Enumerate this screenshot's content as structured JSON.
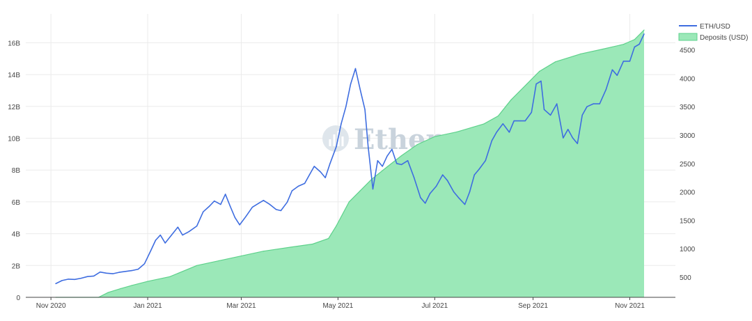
{
  "chart_data": {
    "type": "area",
    "watermark": "Etherscan",
    "x_range": [
      "2020-10-25",
      "2021-11-30"
    ],
    "x_ticks": [
      {
        "date": "2020-11-01",
        "label": "Nov 2020"
      },
      {
        "date": "2021-01-01",
        "label": "Jan 2021"
      },
      {
        "date": "2021-03-01",
        "label": "Mar 2021"
      },
      {
        "date": "2021-05-01",
        "label": "May 2021"
      },
      {
        "date": "2021-07-01",
        "label": "Jul 2021"
      },
      {
        "date": "2021-09-01",
        "label": "Sep 2021"
      },
      {
        "date": "2021-11-01",
        "label": "Nov 2021"
      }
    ],
    "y_left": {
      "range": [
        0,
        17000000000
      ],
      "ticks": [
        {
          "value": 0,
          "label": "0"
        },
        {
          "value": 2000000000,
          "label": "2B"
        },
        {
          "value": 4000000000,
          "label": "4B"
        },
        {
          "value": 6000000000,
          "label": "6B"
        },
        {
          "value": 8000000000,
          "label": "8B"
        },
        {
          "value": 10000000000,
          "label": "10B"
        },
        {
          "value": 12000000000,
          "label": "12B"
        },
        {
          "value": 14000000000,
          "label": "14B"
        },
        {
          "value": 16000000000,
          "label": "16B"
        }
      ]
    },
    "y_right": {
      "range": [
        200,
        4900
      ],
      "ticks": [
        {
          "value": 500,
          "label": "500"
        },
        {
          "value": 1000,
          "label": "1000"
        },
        {
          "value": 1500,
          "label": "1500"
        },
        {
          "value": 2000,
          "label": "2000"
        },
        {
          "value": 2500,
          "label": "2500"
        },
        {
          "value": 3000,
          "label": "3000"
        },
        {
          "value": 3500,
          "label": "3500"
        },
        {
          "value": 4000,
          "label": "4000"
        },
        {
          "value": 4500,
          "label": "4500"
        }
      ]
    },
    "grid": true,
    "legend_position": "top-right",
    "series": [
      {
        "name": "ETH/USD",
        "type": "line",
        "axis": "right",
        "color": "#3e6de0",
        "points": [
          [
            "2020-11-04",
            385
          ],
          [
            "2020-11-08",
            440
          ],
          [
            "2020-11-12",
            465
          ],
          [
            "2020-11-16",
            460
          ],
          [
            "2020-11-20",
            480
          ],
          [
            "2020-11-24",
            510
          ],
          [
            "2020-11-28",
            520
          ],
          [
            "2020-12-02",
            590
          ],
          [
            "2020-12-06",
            570
          ],
          [
            "2020-12-10",
            560
          ],
          [
            "2020-12-14",
            585
          ],
          [
            "2020-12-18",
            600
          ],
          [
            "2020-12-22",
            615
          ],
          [
            "2020-12-26",
            640
          ],
          [
            "2020-12-30",
            735
          ],
          [
            "2021-01-03",
            970
          ],
          [
            "2021-01-06",
            1150
          ],
          [
            "2021-01-09",
            1240
          ],
          [
            "2021-01-12",
            1100
          ],
          [
            "2021-01-16",
            1240
          ],
          [
            "2021-01-20",
            1380
          ],
          [
            "2021-01-23",
            1240
          ],
          [
            "2021-01-27",
            1300
          ],
          [
            "2021-02-01",
            1400
          ],
          [
            "2021-02-05",
            1650
          ],
          [
            "2021-02-09",
            1750
          ],
          [
            "2021-02-12",
            1840
          ],
          [
            "2021-02-16",
            1780
          ],
          [
            "2021-02-19",
            1960
          ],
          [
            "2021-02-22",
            1750
          ],
          [
            "2021-02-25",
            1550
          ],
          [
            "2021-02-28",
            1420
          ],
          [
            "2021-03-04",
            1570
          ],
          [
            "2021-03-08",
            1730
          ],
          [
            "2021-03-12",
            1800
          ],
          [
            "2021-03-15",
            1850
          ],
          [
            "2021-03-19",
            1780
          ],
          [
            "2021-03-23",
            1690
          ],
          [
            "2021-03-26",
            1670
          ],
          [
            "2021-03-30",
            1820
          ],
          [
            "2021-04-02",
            2020
          ],
          [
            "2021-04-06",
            2100
          ],
          [
            "2021-04-10",
            2150
          ],
          [
            "2021-04-13",
            2300
          ],
          [
            "2021-04-16",
            2450
          ],
          [
            "2021-04-20",
            2350
          ],
          [
            "2021-04-23",
            2250
          ],
          [
            "2021-04-26",
            2500
          ],
          [
            "2021-04-30",
            2800
          ],
          [
            "2021-05-03",
            3200
          ],
          [
            "2021-05-06",
            3500
          ],
          [
            "2021-05-09",
            3900
          ],
          [
            "2021-05-12",
            4170
          ],
          [
            "2021-05-15",
            3800
          ],
          [
            "2021-05-18",
            3450
          ],
          [
            "2021-05-20",
            2800
          ],
          [
            "2021-05-23",
            2050
          ],
          [
            "2021-05-26",
            2550
          ],
          [
            "2021-05-29",
            2450
          ],
          [
            "2021-06-01",
            2630
          ],
          [
            "2021-06-04",
            2750
          ],
          [
            "2021-06-07",
            2500
          ],
          [
            "2021-06-10",
            2480
          ],
          [
            "2021-06-14",
            2550
          ],
          [
            "2021-06-18",
            2250
          ],
          [
            "2021-06-22",
            1900
          ],
          [
            "2021-06-25",
            1800
          ],
          [
            "2021-06-28",
            1970
          ],
          [
            "2021-07-02",
            2100
          ],
          [
            "2021-07-06",
            2300
          ],
          [
            "2021-07-09",
            2200
          ],
          [
            "2021-07-13",
            2000
          ],
          [
            "2021-07-16",
            1900
          ],
          [
            "2021-07-20",
            1780
          ],
          [
            "2021-07-23",
            2000
          ],
          [
            "2021-07-26",
            2300
          ],
          [
            "2021-07-29",
            2400
          ],
          [
            "2021-08-02",
            2550
          ],
          [
            "2021-08-06",
            2900
          ],
          [
            "2021-08-09",
            3050
          ],
          [
            "2021-08-13",
            3200
          ],
          [
            "2021-08-17",
            3050
          ],
          [
            "2021-08-20",
            3250
          ],
          [
            "2021-08-24",
            3250
          ],
          [
            "2021-08-27",
            3250
          ],
          [
            "2021-08-31",
            3400
          ],
          [
            "2021-09-03",
            3900
          ],
          [
            "2021-09-06",
            3950
          ],
          [
            "2021-09-08",
            3450
          ],
          [
            "2021-09-12",
            3350
          ],
          [
            "2021-09-16",
            3550
          ],
          [
            "2021-09-20",
            2950
          ],
          [
            "2021-09-23",
            3100
          ],
          [
            "2021-09-26",
            2950
          ],
          [
            "2021-09-29",
            2850
          ],
          [
            "2021-10-02",
            3350
          ],
          [
            "2021-10-05",
            3500
          ],
          [
            "2021-10-09",
            3550
          ],
          [
            "2021-10-13",
            3550
          ],
          [
            "2021-10-17",
            3800
          ],
          [
            "2021-10-21",
            4150
          ],
          [
            "2021-10-24",
            4050
          ],
          [
            "2021-10-28",
            4300
          ],
          [
            "2021-11-01",
            4300
          ],
          [
            "2021-11-04",
            4550
          ],
          [
            "2021-11-07",
            4600
          ],
          [
            "2021-11-10",
            4780
          ]
        ]
      },
      {
        "name": "Deposits (USD)",
        "type": "area",
        "axis": "left",
        "color": "#9be8b8",
        "line_color": "#5ed18b",
        "points": [
          [
            "2020-11-04",
            0
          ],
          [
            "2020-12-01",
            0
          ],
          [
            "2020-12-07",
            300000000
          ],
          [
            "2020-12-15",
            550000000
          ],
          [
            "2020-12-22",
            750000000
          ],
          [
            "2021-01-01",
            1000000000
          ],
          [
            "2021-01-15",
            1300000000
          ],
          [
            "2021-02-01",
            2000000000
          ],
          [
            "2021-02-15",
            2300000000
          ],
          [
            "2021-03-01",
            2600000000
          ],
          [
            "2021-03-15",
            2900000000
          ],
          [
            "2021-04-01",
            3150000000
          ],
          [
            "2021-04-15",
            3350000000
          ],
          [
            "2021-04-25",
            3700000000
          ],
          [
            "2021-04-30",
            4500000000
          ],
          [
            "2021-05-08",
            6000000000
          ],
          [
            "2021-05-15",
            6700000000
          ],
          [
            "2021-05-22",
            7400000000
          ],
          [
            "2021-06-01",
            8200000000
          ],
          [
            "2021-06-10",
            8900000000
          ],
          [
            "2021-06-20",
            9600000000
          ],
          [
            "2021-07-01",
            10100000000
          ],
          [
            "2021-07-15",
            10400000000
          ],
          [
            "2021-08-01",
            10900000000
          ],
          [
            "2021-08-10",
            11400000000
          ],
          [
            "2021-08-18",
            12400000000
          ],
          [
            "2021-08-28",
            13400000000
          ],
          [
            "2021-09-05",
            14200000000
          ],
          [
            "2021-09-15",
            14800000000
          ],
          [
            "2021-10-01",
            15300000000
          ],
          [
            "2021-10-15",
            15600000000
          ],
          [
            "2021-10-28",
            15900000000
          ],
          [
            "2021-11-04",
            16200000000
          ],
          [
            "2021-11-10",
            16800000000
          ]
        ]
      }
    ]
  }
}
